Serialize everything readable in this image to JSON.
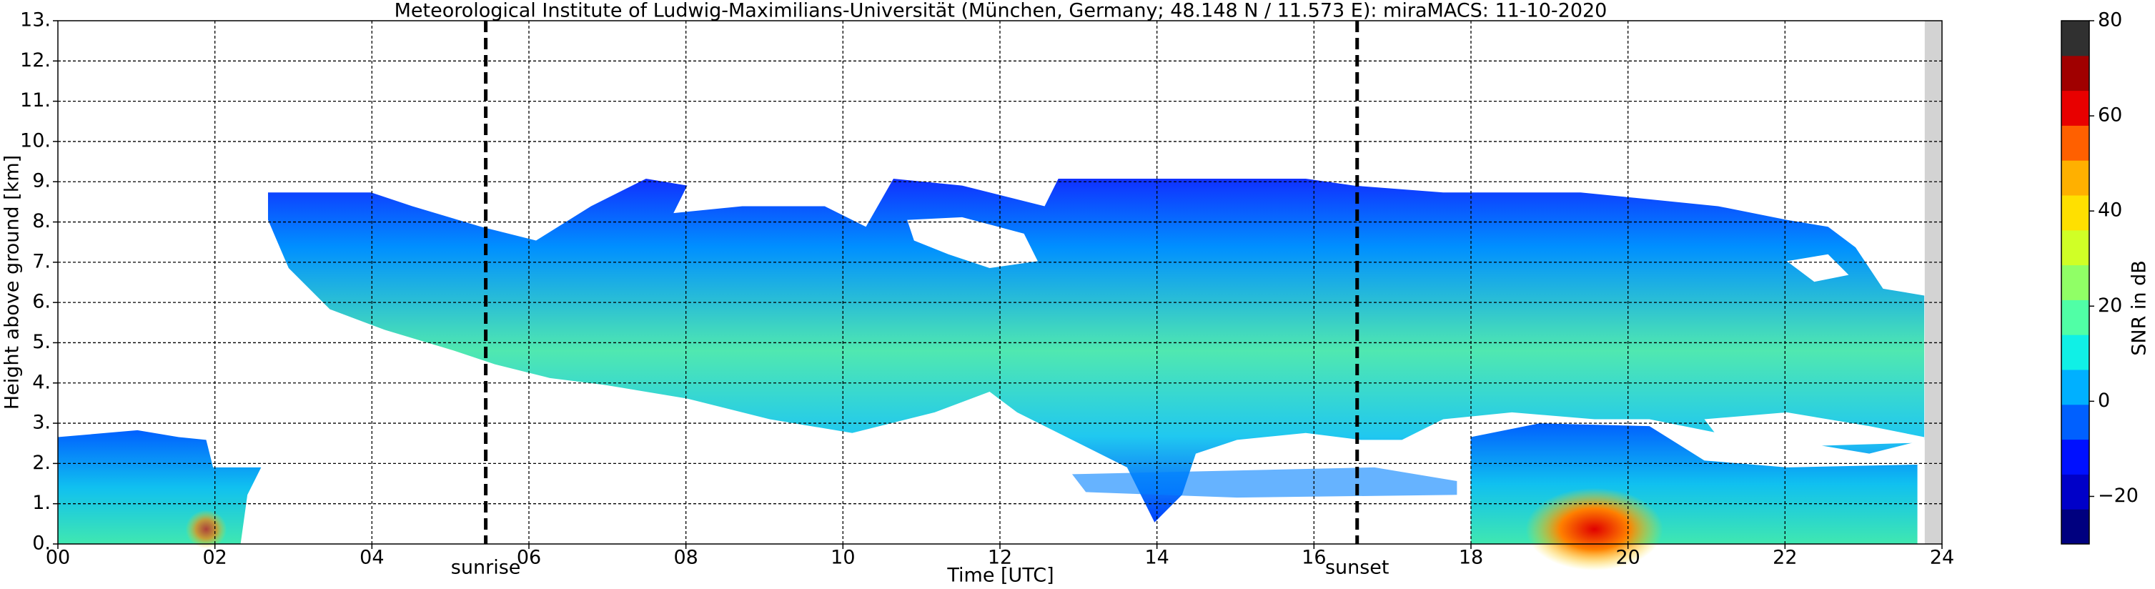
{
  "chart_data": {
    "type": "heatmap",
    "title": "Meteorological Institute of Ludwig-Maximilians-Universität (München, Germany; 48.148 N / 11.573 E):    miraMACS: 11-10-2020",
    "xlabel": "Time [UTC]",
    "ylabel": "Height above ground [km]",
    "xlim": [
      0,
      24
    ],
    "xticks": [
      {
        "value": 0,
        "label": "00"
      },
      {
        "value": 2,
        "label": "02"
      },
      {
        "value": 4,
        "label": "04"
      },
      {
        "value": 6,
        "label": "06"
      },
      {
        "value": 8,
        "label": "08"
      },
      {
        "value": 10,
        "label": "10"
      },
      {
        "value": 12,
        "label": "12"
      },
      {
        "value": 14,
        "label": "14"
      },
      {
        "value": 16,
        "label": "16"
      },
      {
        "value": 18,
        "label": "18"
      },
      {
        "value": 20,
        "label": "20"
      },
      {
        "value": 22,
        "label": "22"
      },
      {
        "value": 24,
        "label": "24"
      }
    ],
    "ylim": [
      0,
      13
    ],
    "yticks": [
      {
        "value": 0,
        "label": "0."
      },
      {
        "value": 1,
        "label": "1."
      },
      {
        "value": 2,
        "label": "2."
      },
      {
        "value": 3,
        "label": "3."
      },
      {
        "value": 4,
        "label": "4."
      },
      {
        "value": 5,
        "label": "5."
      },
      {
        "value": 6,
        "label": "6."
      },
      {
        "value": 7,
        "label": "7."
      },
      {
        "value": 8,
        "label": "8."
      },
      {
        "value": 9,
        "label": "9."
      },
      {
        "value": 10,
        "label": "10."
      },
      {
        "value": 11,
        "label": "11."
      },
      {
        "value": 12,
        "label": "12."
      },
      {
        "value": 13,
        "label": "13."
      }
    ],
    "grid": true,
    "no_data_xlim": [
      23.78,
      24
    ],
    "annotations": [
      {
        "text": "sunrise",
        "x": 5.45
      },
      {
        "text": "sunset",
        "x": 16.55
      }
    ],
    "colorbar": {
      "label": "SNR in dB",
      "lim": [
        -30,
        80
      ],
      "ticks": [
        {
          "value": -20,
          "label": "−20"
        },
        0,
        20,
        40,
        60,
        80
      ],
      "colors": [
        "#00007f",
        "#0000c8",
        "#0010ff",
        "#0060ff",
        "#00b0ff",
        "#10f0e6",
        "#50ffa6",
        "#90ff66",
        "#d0ff26",
        "#ffe000",
        "#ffb000",
        "#ff6000",
        "#e80000",
        "#a00000",
        "#303030"
      ]
    }
  }
}
